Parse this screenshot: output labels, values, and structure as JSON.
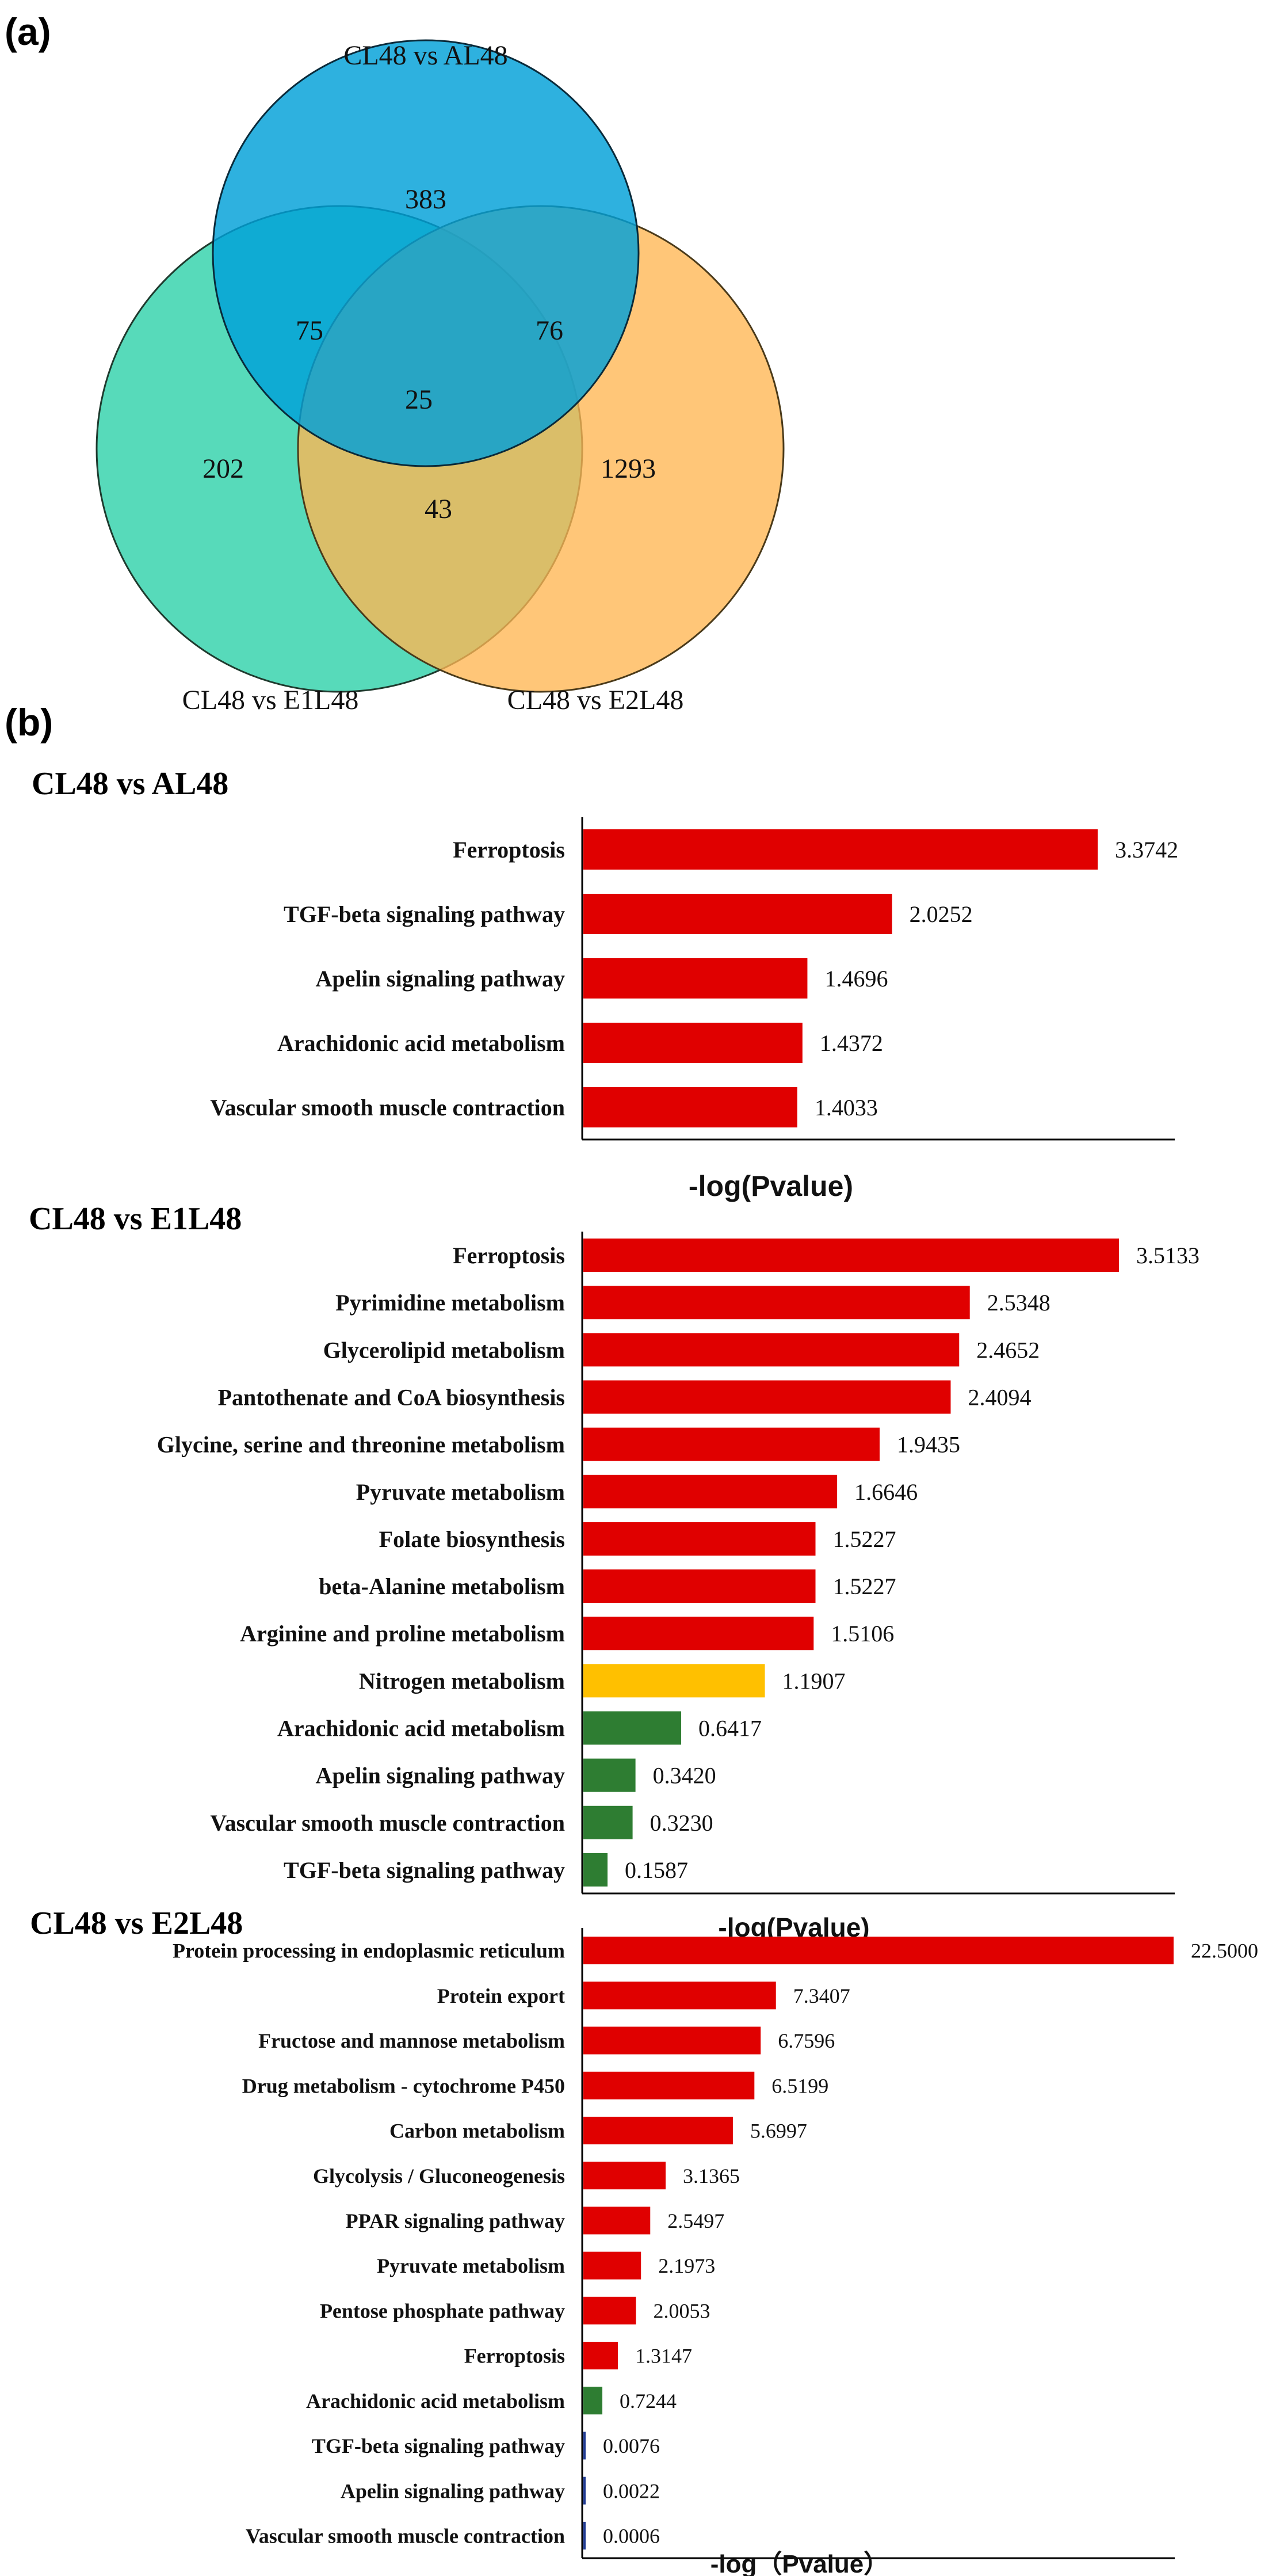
{
  "panel_a": {
    "letter": "(a)",
    "venn": {
      "sets": [
        {
          "name": "CL48 vs AL48",
          "color": "#00A0D8"
        },
        {
          "name": "CL48 vs E1L48",
          "color": "#39D3AE"
        },
        {
          "name": "CL48 vs E2L48",
          "color": "#FFB652"
        }
      ],
      "regions": {
        "AL48_only": "383",
        "E1L48_only": "202",
        "E2L48_only": "1293",
        "AL48_E1L48": "75",
        "AL48_E2L48": "76",
        "E1L48_E2L48": "43",
        "all": "25"
      }
    }
  },
  "panel_b": {
    "letter": "(b)"
  },
  "colors": {
    "red": "#E00000",
    "yellow": "#FFC000",
    "green": "#2E7D32",
    "navy": "#1F3A93"
  },
  "chart_data": [
    {
      "type": "bar",
      "orientation": "horizontal",
      "title": "CL48 vs AL48",
      "xlabel": "-log(Pvalue)",
      "xlim": [
        0,
        3.5
      ],
      "categories": [
        "Ferroptosis",
        "TGF-beta signaling pathway",
        "Apelin signaling pathway",
        "Arachidonic acid metabolism",
        "Vascular smooth muscle contraction"
      ],
      "values": [
        3.3742,
        2.0252,
        1.4696,
        1.4372,
        1.4033
      ],
      "value_labels": [
        "3.3742",
        "2.0252",
        "1.4696",
        "1.4372",
        "1.4033"
      ],
      "bar_colors": [
        "red",
        "red",
        "red",
        "red",
        "red"
      ]
    },
    {
      "type": "bar",
      "orientation": "horizontal",
      "title": "CL48 vs E1L48",
      "xlabel": "-log(Pvalue)",
      "xlim": [
        0,
        3.5
      ],
      "categories": [
        "Ferroptosis",
        "Pyrimidine metabolism",
        "Glycerolipid metabolism",
        "Pantothenate and CoA biosynthesis",
        "Glycine, serine and threonine metabolism",
        "Pyruvate metabolism",
        "Folate biosynthesis",
        "beta-Alanine metabolism",
        "Arginine and proline metabolism",
        "Nitrogen metabolism",
        "Arachidonic acid metabolism",
        "Apelin signaling pathway",
        "Vascular smooth muscle contraction",
        "TGF-beta signaling pathway"
      ],
      "values": [
        3.5133,
        2.5348,
        2.4652,
        2.4094,
        1.9435,
        1.6646,
        1.5227,
        1.5227,
        1.5106,
        1.1907,
        0.6417,
        0.342,
        0.323,
        0.1587
      ],
      "value_labels": [
        "3.5133",
        "2.5348",
        "2.4652",
        "2.4094",
        "1.9435",
        "1.6646",
        "1.5227",
        "1.5227",
        "1.5106",
        "1.1907",
        "0.6417",
        "0.3420",
        "0.3230",
        "0.1587"
      ],
      "bar_colors": [
        "red",
        "red",
        "red",
        "red",
        "red",
        "red",
        "red",
        "red",
        "red",
        "yellow",
        "green",
        "green",
        "green",
        "green"
      ]
    },
    {
      "type": "bar",
      "orientation": "horizontal",
      "title": "CL48 vs E2L48",
      "xlabel": "-log（Pvalue）",
      "xlim": [
        0,
        22.5
      ],
      "categories": [
        "Protein processing in endoplasmic reticulum",
        "Protein export",
        "Fructose and mannose metabolism",
        "Drug metabolism - cytochrome P450",
        "Carbon metabolism",
        "Glycolysis / Gluconeogenesis",
        "PPAR signaling pathway",
        "Pyruvate metabolism",
        "Pentose phosphate pathway",
        "Ferroptosis",
        "Arachidonic acid metabolism",
        "TGF-beta signaling pathway",
        "Apelin signaling pathway",
        "Vascular smooth muscle contraction"
      ],
      "values": [
        22.5,
        7.3407,
        6.7596,
        6.5199,
        5.6997,
        3.1365,
        2.5497,
        2.1973,
        2.0053,
        1.3147,
        0.7244,
        0.0076,
        0.0022,
        0.0006
      ],
      "value_labels": [
        "22.5000",
        "7.3407",
        "6.7596",
        "6.5199",
        "5.6997",
        "3.1365",
        "2.5497",
        "2.1973",
        "2.0053",
        "1.3147",
        "0.7244",
        "0.0076",
        "0.0022",
        "0.0006"
      ],
      "bar_colors": [
        "red",
        "red",
        "red",
        "red",
        "red",
        "red",
        "red",
        "red",
        "red",
        "red",
        "green",
        "navy",
        "navy",
        "navy"
      ]
    }
  ]
}
